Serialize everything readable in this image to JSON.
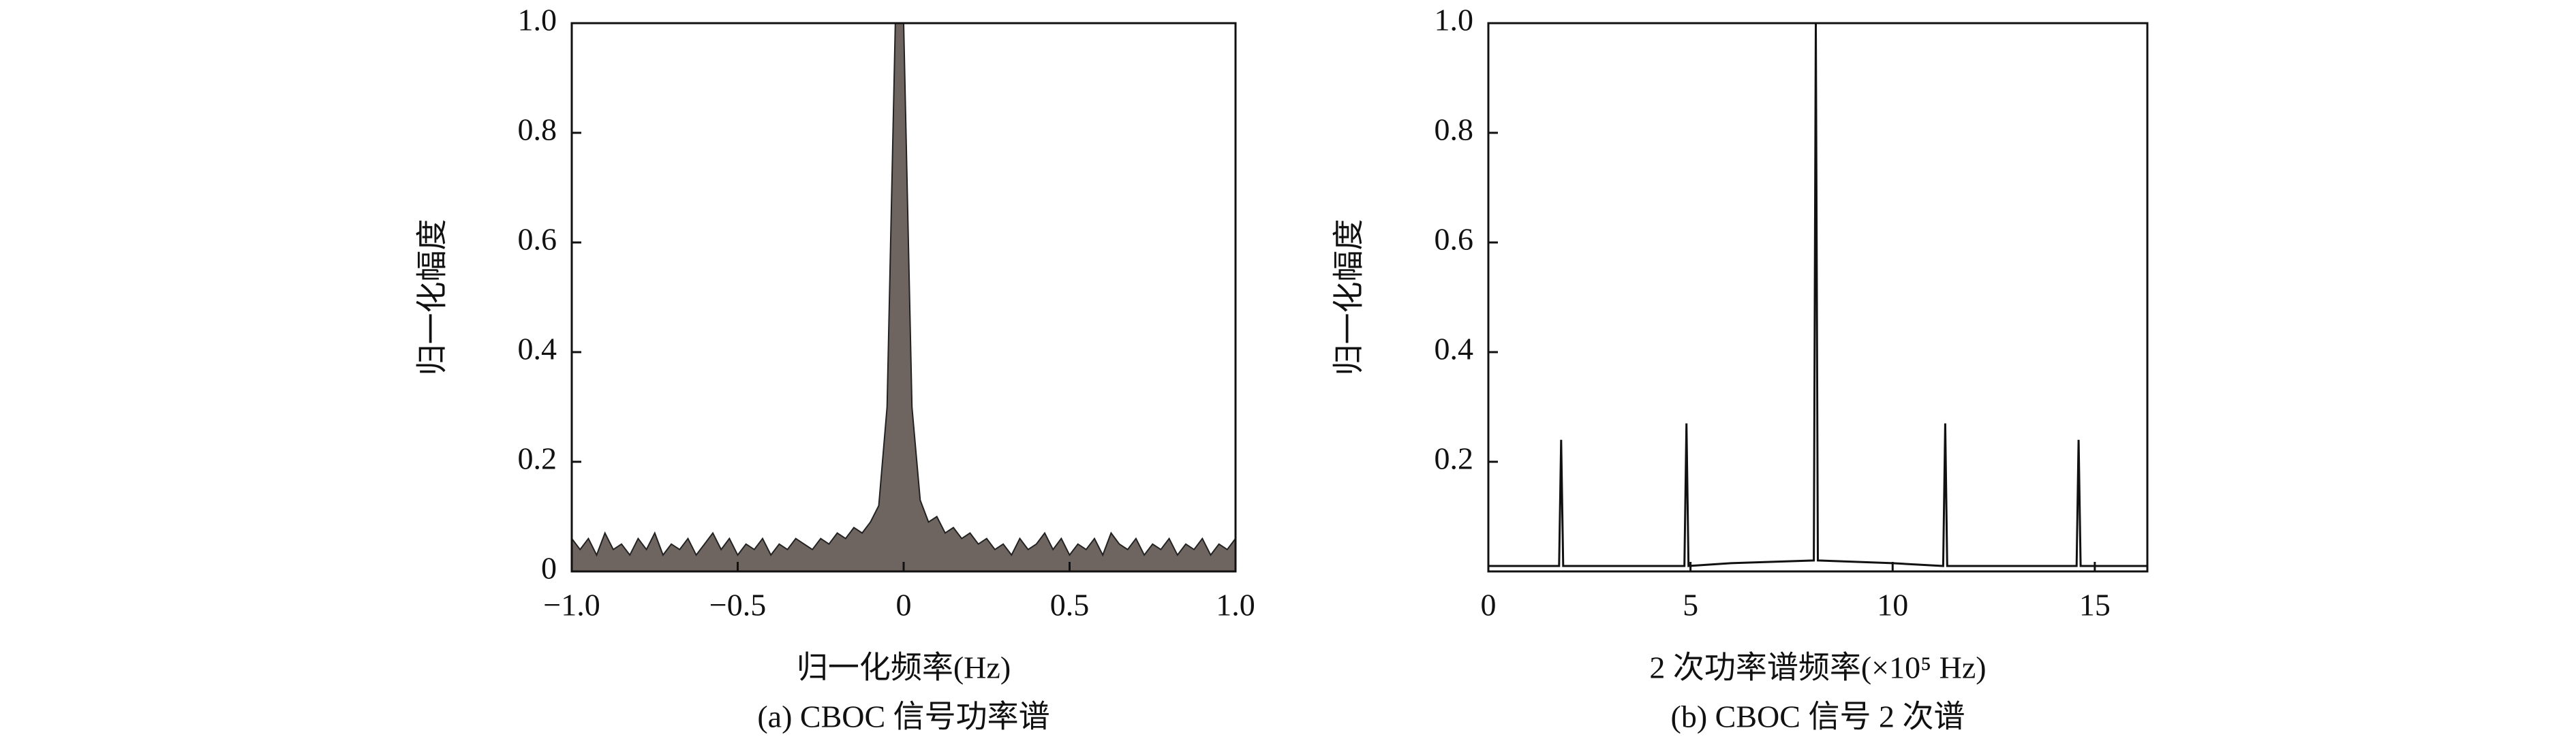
{
  "chart_data": [
    {
      "type": "area",
      "ylabel": "归一化幅度",
      "xlabel": "归一化频率(Hz)",
      "caption": "(a) CBOC 信号功率谱",
      "color": "#6e6560",
      "x": [
        -1,
        -0.975,
        -0.95,
        -0.925,
        -0.9,
        -0.875,
        -0.85,
        -0.825,
        -0.8,
        -0.775,
        -0.75,
        -0.725,
        -0.7,
        -0.675,
        -0.65,
        -0.625,
        -0.6,
        -0.575,
        -0.55,
        -0.525,
        -0.5,
        -0.475,
        -0.45,
        -0.425,
        -0.4,
        -0.375,
        -0.35,
        -0.325,
        -0.3,
        -0.275,
        -0.25,
        -0.225,
        -0.2,
        -0.175,
        -0.15,
        -0.125,
        -0.1,
        -0.075,
        -0.05,
        -0.025,
        0,
        0.025,
        0.05,
        0.075,
        0.1,
        0.125,
        0.15,
        0.175,
        0.2,
        0.225,
        0.25,
        0.275,
        0.3,
        0.325,
        0.35,
        0.375,
        0.4,
        0.425,
        0.45,
        0.475,
        0.5,
        0.525,
        0.55,
        0.575,
        0.6,
        0.625,
        0.65,
        0.675,
        0.7,
        0.725,
        0.75,
        0.775,
        0.8,
        0.825,
        0.85,
        0.875,
        0.9,
        0.925,
        0.95,
        0.975,
        1
      ],
      "values": [
        0.06,
        0.04,
        0.06,
        0.03,
        0.07,
        0.04,
        0.05,
        0.03,
        0.06,
        0.04,
        0.07,
        0.03,
        0.05,
        0.04,
        0.06,
        0.03,
        0.05,
        0.07,
        0.04,
        0.06,
        0.03,
        0.05,
        0.04,
        0.06,
        0.03,
        0.05,
        0.04,
        0.06,
        0.05,
        0.04,
        0.06,
        0.05,
        0.07,
        0.06,
        0.08,
        0.07,
        0.09,
        0.12,
        0.3,
        1.0,
        1.0,
        0.3,
        0.13,
        0.09,
        0.1,
        0.07,
        0.08,
        0.06,
        0.07,
        0.05,
        0.06,
        0.04,
        0.05,
        0.03,
        0.06,
        0.04,
        0.05,
        0.07,
        0.04,
        0.06,
        0.03,
        0.05,
        0.04,
        0.06,
        0.03,
        0.07,
        0.05,
        0.04,
        0.06,
        0.03,
        0.05,
        0.04,
        0.06,
        0.03,
        0.05,
        0.04,
        0.06,
        0.03,
        0.05,
        0.04,
        0.06
      ],
      "xlim": [
        -1,
        1
      ],
      "ylim": [
        0,
        1
      ],
      "xticks": [
        {
          "value": -1,
          "label": "−1.0"
        },
        {
          "value": -0.5,
          "label": "−0.5"
        },
        0,
        0.5,
        {
          "value": 1,
          "label": "1.0"
        }
      ],
      "yticks": [
        0,
        0.2,
        0.4,
        0.6,
        0.8,
        {
          "value": 1,
          "label": "1.0"
        }
      ]
    },
    {
      "type": "line",
      "ylabel": "归一化幅度",
      "xlabel": "2 次功率谱频率(×10⁵ Hz)",
      "caption": "(b) CBOC 信号 2 次谱",
      "color": "#111111",
      "x": [
        0,
        1.75,
        1.8,
        1.85,
        4.85,
        4.9,
        4.95,
        6,
        8.05,
        8.1,
        8.15,
        10,
        11.25,
        11.3,
        11.35,
        14.55,
        14.6,
        14.65,
        16.3
      ],
      "values": [
        0.01,
        0.01,
        0.24,
        0.01,
        0.01,
        0.27,
        0.01,
        0.015,
        0.02,
        1.0,
        0.02,
        0.015,
        0.01,
        0.27,
        0.01,
        0.01,
        0.24,
        0.01,
        0.01
      ],
      "xlim": [
        0,
        16.3
      ],
      "ylim": [
        0,
        1
      ],
      "xticks": [
        0,
        5,
        10,
        15
      ],
      "yticks": [
        0.2,
        0.4,
        0.6,
        0.8,
        {
          "value": 1,
          "label": "1.0"
        }
      ]
    }
  ]
}
